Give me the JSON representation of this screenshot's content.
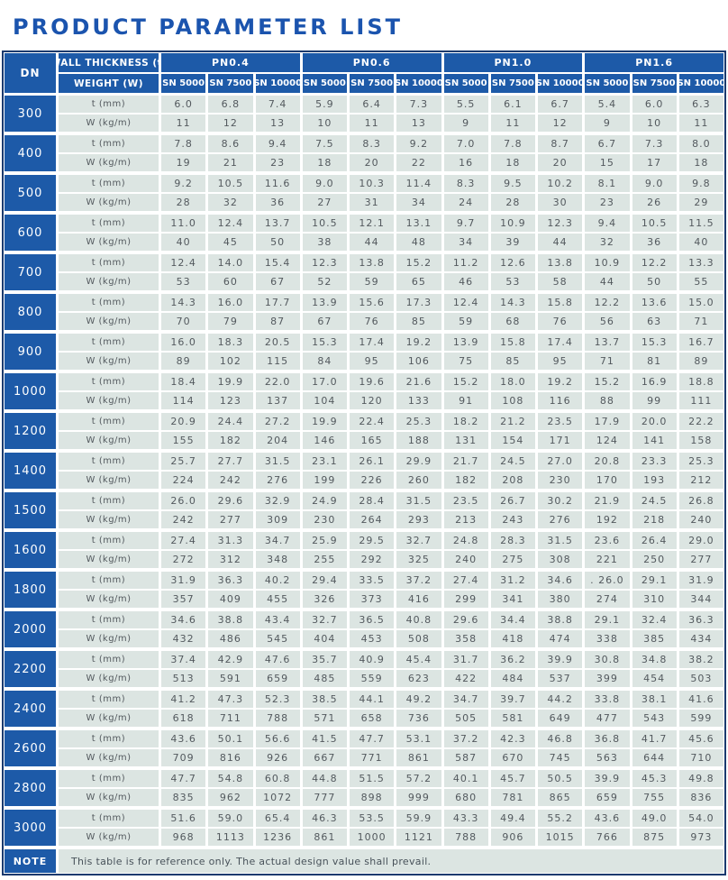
{
  "title": "PRODUCT PARAMETER LIST",
  "colors": {
    "title_blue": "#1b54ae",
    "header_blue": "#1d5aa8",
    "cell_bg": "#dce5e2",
    "outline_navy": "#1a3a6e",
    "data_text": "#53595e"
  },
  "table": {
    "header": {
      "dn_label": "DN",
      "thickness_label": "WALL THICKNESS (t)",
      "weight_label": "WEIGHT (W)",
      "pn_groups": [
        "PN0.4",
        "PN0.6",
        "PN1.0",
        "PN1.6"
      ],
      "sn_labels": [
        "SN 5000",
        "SN 7500",
        "SN 10000"
      ]
    },
    "row_labels": {
      "t": "t (mm)",
      "w": "W (kg/m)"
    },
    "rows": [
      {
        "dn": "300",
        "t": [
          "6.0",
          "6.8",
          "7.4",
          "5.9",
          "6.4",
          "7.3",
          "5.5",
          "6.1",
          "6.7",
          "5.4",
          "6.0",
          "6.3"
        ],
        "w": [
          "11",
          "12",
          "13",
          "10",
          "11",
          "13",
          "9",
          "11",
          "12",
          "9",
          "10",
          "11"
        ]
      },
      {
        "dn": "400",
        "t": [
          "7.8",
          "8.6",
          "9.4",
          "7.5",
          "8.3",
          "9.2",
          "7.0",
          "7.8",
          "8.7",
          "6.7",
          "7.3",
          "8.0"
        ],
        "w": [
          "19",
          "21",
          "23",
          "18",
          "20",
          "22",
          "16",
          "18",
          "20",
          "15",
          "17",
          "18"
        ]
      },
      {
        "dn": "500",
        "t": [
          "9.2",
          "10.5",
          "11.6",
          "9.0",
          "10.3",
          "11.4",
          "8.3",
          "9.5",
          "10.2",
          "8.1",
          "9.0",
          "9.8"
        ],
        "w": [
          "28",
          "32",
          "36",
          "27",
          "31",
          "34",
          "24",
          "28",
          "30",
          "23",
          "26",
          "29"
        ]
      },
      {
        "dn": "600",
        "t": [
          "11.0",
          "12.4",
          "13.7",
          "10.5",
          "12.1",
          "13.1",
          "9.7",
          "10.9",
          "12.3",
          "9.4",
          "10.5",
          "11.5"
        ],
        "w": [
          "40",
          "45",
          "50",
          "38",
          "44",
          "48",
          "34",
          "39",
          "44",
          "32",
          "36",
          "40"
        ]
      },
      {
        "dn": "700",
        "t": [
          "12.4",
          "14.0",
          "15.4",
          "12.3",
          "13.8",
          "15.2",
          "11.2",
          "12.6",
          "13.8",
          "10.9",
          "12.2",
          "13.3"
        ],
        "w": [
          "53",
          "60",
          "67",
          "52",
          "59",
          "65",
          "46",
          "53",
          "58",
          "44",
          "50",
          "55"
        ]
      },
      {
        "dn": "800",
        "t": [
          "14.3",
          "16.0",
          "17.7",
          "13.9",
          "15.6",
          "17.3",
          "12.4",
          "14.3",
          "15.8",
          "12.2",
          "13.6",
          "15.0"
        ],
        "w": [
          "70",
          "79",
          "87",
          "67",
          "76",
          "85",
          "59",
          "68",
          "76",
          "56",
          "63",
          "71"
        ]
      },
      {
        "dn": "900",
        "t": [
          "16.0",
          "18.3",
          "20.5",
          "15.3",
          "17.4",
          "19.2",
          "13.9",
          "15.8",
          "17.4",
          "13.7",
          "15.3",
          "16.7"
        ],
        "w": [
          "89",
          "102",
          "115",
          "84",
          "95",
          "106",
          "75",
          "85",
          "95",
          "71",
          "81",
          "89"
        ]
      },
      {
        "dn": "1000",
        "t": [
          "18.4",
          "19.9",
          "22.0",
          "17.0",
          "19.6",
          "21.6",
          "15.2",
          "18.0",
          "19.2",
          "15.2",
          "16.9",
          "18.8"
        ],
        "w": [
          "114",
          "123",
          "137",
          "104",
          "120",
          "133",
          "91",
          "108",
          "116",
          "88",
          "99",
          "111"
        ]
      },
      {
        "dn": "1200",
        "t": [
          "20.9",
          "24.4",
          "27.2",
          "19.9",
          "22.4",
          "25.3",
          "18.2",
          "21.2",
          "23.5",
          "17.9",
          "20.0",
          "22.2"
        ],
        "w": [
          "155",
          "182",
          "204",
          "146",
          "165",
          "188",
          "131",
          "154",
          "171",
          "124",
          "141",
          "158"
        ]
      },
      {
        "dn": "1400",
        "t": [
          "25.7",
          "27.7",
          "31.5",
          "23.1",
          "26.1",
          "29.9",
          "21.7",
          "24.5",
          "27.0",
          "20.8",
          "23.3",
          "25.3"
        ],
        "w": [
          "224",
          "242",
          "276",
          "199",
          "226",
          "260",
          "182",
          "208",
          "230",
          "170",
          "193",
          "212"
        ]
      },
      {
        "dn": "1500",
        "t": [
          "26.0",
          "29.6",
          "32.9",
          "24.9",
          "28.4",
          "31.5",
          "23.5",
          "26.7",
          "30.2",
          "21.9",
          "24.5",
          "26.8"
        ],
        "w": [
          "242",
          "277",
          "309",
          "230",
          "264",
          "293",
          "213",
          "243",
          "276",
          "192",
          "218",
          "240"
        ]
      },
      {
        "dn": "1600",
        "t": [
          "27.4",
          "31.3",
          "34.7",
          "25.9",
          "29.5",
          "32.7",
          "24.8",
          "28.3",
          "31.5",
          "23.6",
          "26.4",
          "29.0"
        ],
        "w": [
          "272",
          "312",
          "348",
          "255",
          "292",
          "325",
          "240",
          "275",
          "308",
          "221",
          "250",
          "277"
        ]
      },
      {
        "dn": "1800",
        "t": [
          "31.9",
          "36.3",
          "40.2",
          "29.4",
          "33.5",
          "37.2",
          "27.4",
          "31.2",
          "34.6",
          ". 26.0",
          "29.1",
          "31.9"
        ],
        "w": [
          "357",
          "409",
          "455",
          "326",
          "373",
          "416",
          "299",
          "341",
          "380",
          "274",
          "310",
          "344"
        ]
      },
      {
        "dn": "2000",
        "t": [
          "34.6",
          "38.8",
          "43.4",
          "32.7",
          "36.5",
          "40.8",
          "29.6",
          "34.4",
          "38.8",
          "29.1",
          "32.4",
          "36.3"
        ],
        "w": [
          "432",
          "486",
          "545",
          "404",
          "453",
          "508",
          "358",
          "418",
          "474",
          "338",
          "385",
          "434"
        ]
      },
      {
        "dn": "2200",
        "t": [
          "37.4",
          "42.9",
          "47.6",
          "35.7",
          "40.9",
          "45.4",
          "31.7",
          "36.2",
          "39.9",
          "30.8",
          "34.8",
          "38.2"
        ],
        "w": [
          "513",
          "591",
          "659",
          "485",
          "559",
          "623",
          "422",
          "484",
          "537",
          "399",
          "454",
          "503"
        ]
      },
      {
        "dn": "2400",
        "t": [
          "41.2",
          "47.3",
          "52.3",
          "38.5",
          "44.1",
          "49.2",
          "34.7",
          "39.7",
          "44.2",
          "33.8",
          "38.1",
          "41.6"
        ],
        "w": [
          "618",
          "711",
          "788",
          "571",
          "658",
          "736",
          "505",
          "581",
          "649",
          "477",
          "543",
          "599"
        ]
      },
      {
        "dn": "2600",
        "t": [
          "43.6",
          "50.1",
          "56.6",
          "41.5",
          "47.7",
          "53.1",
          "37.2",
          "42.3",
          "46.8",
          "36.8",
          "41.7",
          "45.6"
        ],
        "w": [
          "709",
          "816",
          "926",
          "667",
          "771",
          "861",
          "587",
          "670",
          "745",
          "563",
          "644",
          "710"
        ]
      },
      {
        "dn": "2800",
        "t": [
          "47.7",
          "54.8",
          "60.8",
          "44.8",
          "51.5",
          "57.2",
          "40.1",
          "45.7",
          "50.5",
          "39.9",
          "45.3",
          "49.8"
        ],
        "w": [
          "835",
          "962",
          "1072",
          "777",
          "898",
          "999",
          "680",
          "781",
          "865",
          "659",
          "755",
          "836"
        ]
      },
      {
        "dn": "3000",
        "t": [
          "51.6",
          "59.0",
          "65.4",
          "46.3",
          "53.5",
          "59.9",
          "43.3",
          "49.4",
          "55.2",
          "43.6",
          "49.0",
          "54.0"
        ],
        "w": [
          "968",
          "1113",
          "1236",
          "861",
          "1000",
          "1121",
          "788",
          "906",
          "1015",
          "766",
          "875",
          "973"
        ]
      }
    ]
  },
  "note": {
    "label": "NOTE",
    "text": "This table is for reference only. The actual design value shall prevail."
  }
}
